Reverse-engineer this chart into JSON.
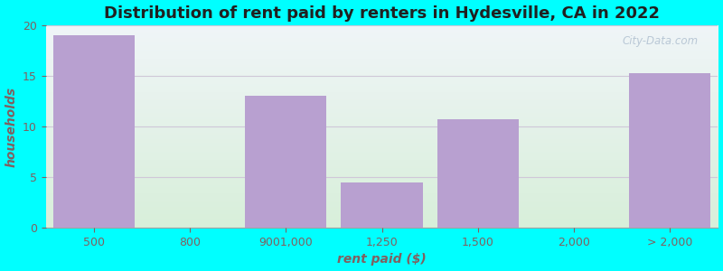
{
  "title": "Distribution of rent paid by renters in Hydesville, CA in 2022",
  "xlabel": "rent paid ($)",
  "ylabel": "households",
  "categories": [
    "500",
    "800",
    "9001,000",
    "1,250",
    "1,500",
    "2,000",
    "> 2,000"
  ],
  "values": [
    19,
    0,
    13,
    4.5,
    10.7,
    0,
    15.3
  ],
  "bar_color": "#B8A0D0",
  "background_outer": "#00FFFF",
  "background_inner_top": "#F0F5F8",
  "background_inner_bottom": "#D8EFDA",
  "grid_color": "#D0C8D8",
  "ylim": [
    0,
    20
  ],
  "yticks": [
    0,
    5,
    10,
    15,
    20
  ],
  "title_fontsize": 13,
  "axis_label_fontsize": 10,
  "tick_fontsize": 9,
  "tick_color": "#806060",
  "label_color": "#806060",
  "title_color": "#202020",
  "watermark": "City-Data.com"
}
